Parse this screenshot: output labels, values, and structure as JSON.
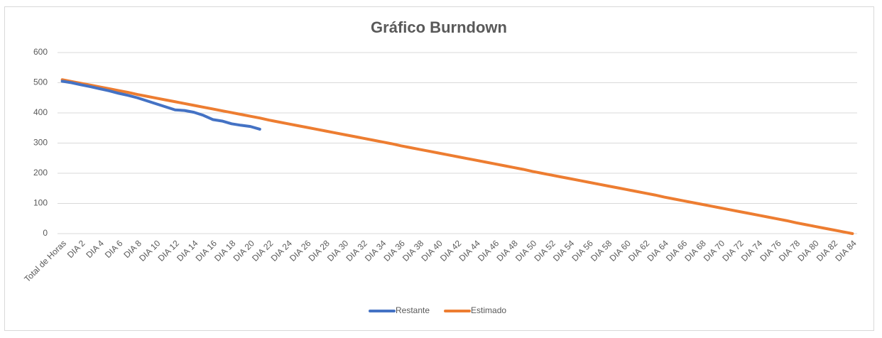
{
  "chart_data": {
    "type": "line",
    "title": "Gráfico Burndown",
    "categories": [
      "Total de Horas",
      null,
      "DIA 2",
      null,
      "DIA 4",
      null,
      "DIA 6",
      null,
      "DIA 8",
      null,
      "DIA 10",
      null,
      "DIA 12",
      null,
      "DIA 14",
      null,
      "DIA 16",
      null,
      "DIA 18",
      null,
      "DIA 20",
      null,
      "DIA 22",
      null,
      "DIA 24",
      null,
      "DIA 26",
      null,
      "DIA 28",
      null,
      "DIA 30",
      null,
      "DIA 32",
      null,
      "DIA 34",
      null,
      "DIA 36",
      null,
      "DIA 38",
      null,
      "DIA 40",
      null,
      "DIA 42",
      null,
      "DIA 44",
      null,
      "DIA 46",
      null,
      "DIA 48",
      null,
      "DIA 50",
      null,
      "DIA 52",
      null,
      "DIA 54",
      null,
      "DIA 56",
      null,
      "DIA 58",
      null,
      "DIA 60",
      null,
      "DIA 62",
      null,
      "DIA 64",
      null,
      "DIA 66",
      null,
      "DIA 68",
      null,
      "DIA 70",
      null,
      "DIA 72",
      null,
      "DIA 74",
      null,
      "DIA 76",
      null,
      "DIA 78",
      null,
      "DIA 80",
      null,
      "DIA 82",
      null,
      "DIA 84"
    ],
    "series": [
      {
        "name": "Restante",
        "color": "#4472c4",
        "values": [
          505,
          500,
          493,
          487,
          480,
          473,
          465,
          458,
          450,
          440,
          430,
          420,
          410,
          408,
          402,
          392,
          378,
          373,
          364,
          359,
          355,
          346,
          null,
          null,
          null,
          null,
          null,
          null,
          null,
          null,
          null,
          null,
          null,
          null,
          null,
          null,
          null,
          null,
          null,
          null,
          null,
          null,
          null,
          null,
          null,
          null,
          null,
          null,
          null,
          null,
          null,
          null,
          null,
          null,
          null,
          null,
          null,
          null,
          null,
          null,
          null,
          null,
          null,
          null,
          null,
          null,
          null,
          null,
          null,
          null,
          null,
          null,
          null,
          null,
          null,
          null,
          null,
          null,
          null,
          null,
          null,
          null,
          null,
          null,
          null
        ]
      },
      {
        "name": "Estimado",
        "color": "#ed7d31",
        "values": [
          510,
          504,
          498,
          492,
          486,
          480,
          474,
          468,
          461,
          455,
          449,
          443,
          437,
          431,
          425,
          419,
          413,
          407,
          401,
          395,
          389,
          383,
          376,
          370,
          364,
          358,
          352,
          346,
          340,
          334,
          328,
          322,
          316,
          310,
          304,
          298,
          291,
          285,
          279,
          273,
          267,
          261,
          255,
          249,
          243,
          237,
          231,
          225,
          219,
          213,
          206,
          200,
          194,
          188,
          182,
          176,
          170,
          164,
          158,
          152,
          146,
          140,
          134,
          128,
          121,
          115,
          109,
          103,
          97,
          91,
          85,
          79,
          73,
          67,
          61,
          55,
          49,
          43,
          36,
          30,
          24,
          18,
          12,
          6,
          0
        ]
      }
    ],
    "ylim": [
      0,
      600
    ],
    "yticks": [
      0,
      100,
      200,
      300,
      400,
      500,
      600
    ],
    "grid": true,
    "legend": "bottom"
  }
}
